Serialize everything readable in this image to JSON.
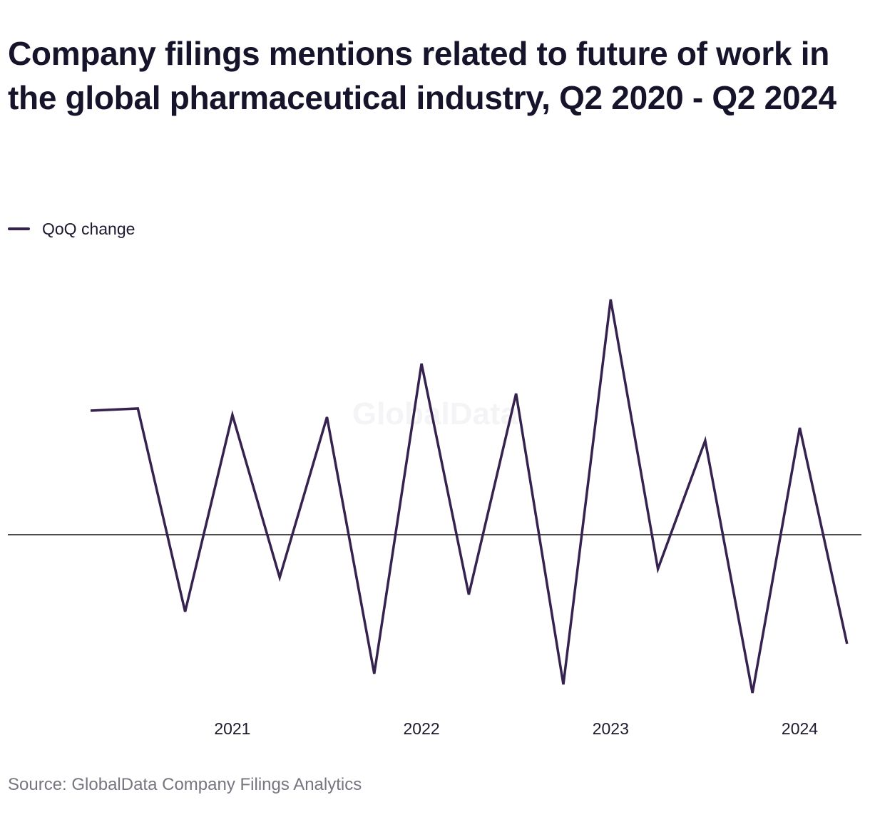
{
  "title": "Company filings mentions related to future of work in the global pharmaceutical industry, Q2 2020 - Q2 2024",
  "source": "Source: GlobalData Company Filings Analytics",
  "watermark": "GlobalData",
  "colors": {
    "series": "#35224f",
    "zero_line": "#111111",
    "text": "#1c1a2e",
    "source": "#777580",
    "watermark": "#f4f4f6"
  },
  "chart_data": {
    "type": "line",
    "title": "Company filings mentions related to future of work in the global pharmaceutical industry, Q2 2020 - Q2 2024",
    "xlabel": "",
    "ylabel": "",
    "x": [
      "Q2 2020",
      "Q3 2020",
      "Q4 2020",
      "Q1 2021",
      "Q2 2021",
      "Q3 2021",
      "Q4 2021",
      "Q1 2022",
      "Q2 2022",
      "Q3 2022",
      "Q4 2022",
      "Q1 2023",
      "Q2 2023",
      "Q3 2023",
      "Q4 2023",
      "Q1 2024",
      "Q2 2024"
    ],
    "x_ticks": [
      {
        "label": "2021",
        "at": "Q1 2021"
      },
      {
        "label": "2022",
        "at": "Q1 2022"
      },
      {
        "label": "2023",
        "at": "Q1 2023"
      },
      {
        "label": "2024",
        "at": "Q1 2024"
      }
    ],
    "series": [
      {
        "name": "QoQ change",
        "values": [
          0.58,
          0.59,
          -0.36,
          0.56,
          -0.2,
          0.55,
          -0.65,
          0.8,
          -0.28,
          0.66,
          -0.7,
          1.1,
          -0.16,
          0.44,
          -0.74,
          0.5,
          -0.51
        ]
      }
    ],
    "ylim": [
      -0.8,
      1.2
    ],
    "zero_line": true,
    "grid": false,
    "y_axis_labels": false,
    "legend": "top-left"
  }
}
